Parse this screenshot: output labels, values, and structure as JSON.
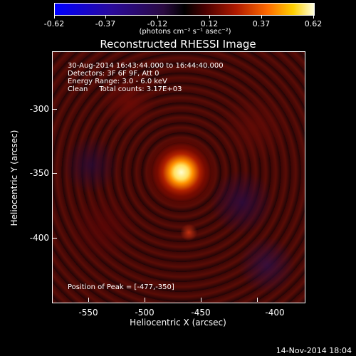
{
  "colorbar": {
    "ticks": [
      "-0.62",
      "-0.37",
      "-0.12",
      "0.12",
      "0.37",
      "0.62"
    ],
    "unit": "(photons cm⁻² s⁻¹ asec⁻²)"
  },
  "title": "Reconstructed RHESSI Image",
  "info": {
    "line1": "30-Aug-2014 16:43:44.000 to 16:44:40.000",
    "line2": "Detectors: 3F 6F 9F, Att 0",
    "line3": "Energy Range: 3.0 - 6.0 keV",
    "line4": "Clean     Total counts: 3.17E+03"
  },
  "peak": "Position of Peak = [-477,-350]",
  "axes": {
    "x_ticks": [
      "-550",
      "-500",
      "-450",
      "-400"
    ],
    "y_ticks": [
      "-300",
      "-350",
      "-400"
    ],
    "xlabel": "Heliocentric X (arcsec)",
    "ylabel": "Heliocentric Y (arcsec)"
  },
  "footer_date": "14-Nov-2014 18:04"
}
